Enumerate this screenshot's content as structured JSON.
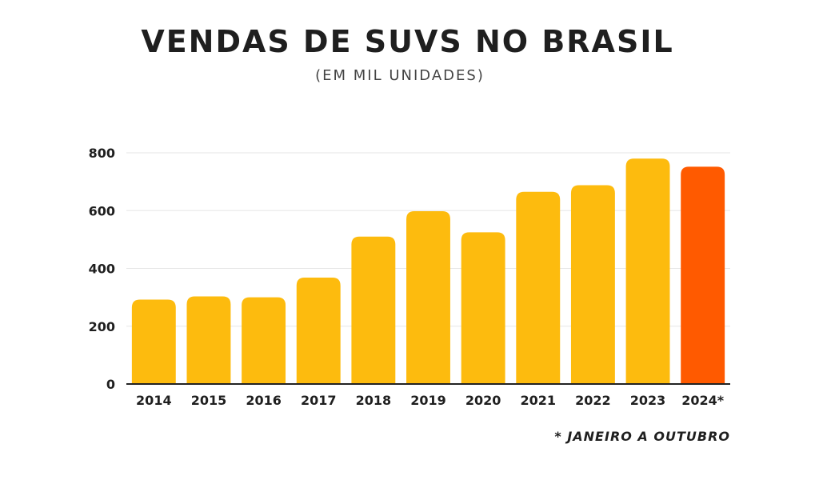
{
  "chart_data": {
    "type": "bar",
    "title": "VENDAS DE SUVS NO BRASIL",
    "subtitle": "(EM MIL UNIDADES)",
    "categories": [
      "2014",
      "2015",
      "2016",
      "2017",
      "2018",
      "2019",
      "2020",
      "2021",
      "2022",
      "2023",
      "2024*"
    ],
    "values": [
      292,
      303,
      300,
      368,
      510,
      598,
      525,
      665,
      688,
      780,
      752
    ],
    "ylim": [
      0,
      800
    ],
    "yticks": [
      0,
      200,
      400,
      600,
      800
    ],
    "grid": true,
    "colors": {
      "default_bar": "#FDBB0E",
      "highlight_bar": "#FF5A00",
      "gridline": "#e6e6e6",
      "axis": "#222222"
    },
    "highlight_category": "2024*",
    "footnote": "* JANEIRO A OUTUBRO"
  }
}
